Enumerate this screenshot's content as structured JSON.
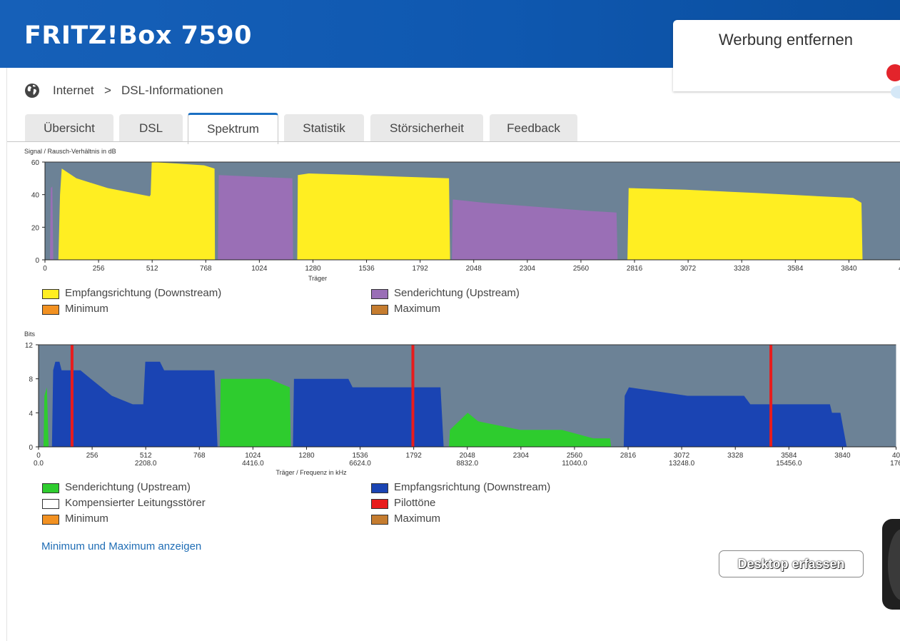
{
  "header": {
    "title": "FRITZ!Box 7590"
  },
  "ad": {
    "label": "Werbung entfernen"
  },
  "breadcrumb": {
    "icon": "globe-icon",
    "items": [
      "Internet",
      "DSL-Informationen"
    ],
    "separator": ">"
  },
  "tabs": [
    {
      "label": "Übersicht",
      "active": false
    },
    {
      "label": "DSL",
      "active": false
    },
    {
      "label": "Spektrum",
      "active": true
    },
    {
      "label": "Statistik",
      "active": false
    },
    {
      "label": "Störsicherheit",
      "active": false
    },
    {
      "label": "Feedback",
      "active": false
    }
  ],
  "chart_data": [
    {
      "type": "area",
      "ylabel": "Signal / Rausch-Verhältnis in dB",
      "xlabel": "Träger",
      "ylim": [
        0,
        60
      ],
      "yticks": [
        "0",
        "20",
        "40",
        "60"
      ],
      "xlim": [
        0,
        4096
      ],
      "xticks": [
        "0",
        "256",
        "512",
        "768",
        "1024",
        "1280",
        "1536",
        "1792",
        "2048",
        "2304",
        "2560",
        "2816",
        "3072",
        "3328",
        "3584",
        "3840",
        "40"
      ],
      "background": "#6c8296",
      "series": [
        {
          "name": "Empfangsrichtung (Downstream)",
          "color": "#ffee22",
          "segments": [
            [
              [
                64,
                0
              ],
              [
                72,
                40
              ],
              [
                80,
                56
              ],
              [
                150,
                50
              ],
              [
                300,
                44
              ],
              [
                500,
                39
              ],
              [
                505,
                40
              ],
              [
                510,
                60
              ],
              [
                640,
                59
              ],
              [
                760,
                58
              ],
              [
                810,
                56
              ],
              [
                812,
                0
              ]
            ],
            [
              [
                1205,
                0
              ],
              [
                1208,
                52
              ],
              [
                1260,
                53
              ],
              [
                1500,
                52
              ],
              [
                1700,
                51
              ],
              [
                1930,
                50
              ],
              [
                1935,
                0
              ]
            ],
            [
              [
                2782,
                0
              ],
              [
                2788,
                44
              ],
              [
                3060,
                43
              ],
              [
                3400,
                41
              ],
              [
                3700,
                39
              ],
              [
                3860,
                38
              ],
              [
                3900,
                35
              ],
              [
                3905,
                0
              ]
            ]
          ]
        },
        {
          "name": "Senderichtung (Upstream)",
          "color": "#9a6fb6",
          "segments": [
            [
              [
                24,
                0
              ],
              [
                28,
                44
              ],
              [
                35,
                45
              ],
              [
                40,
                0
              ]
            ],
            [
              [
                826,
                0
              ],
              [
                830,
                52
              ],
              [
                1000,
                51
              ],
              [
                1182,
                50
              ],
              [
                1185,
                0
              ]
            ],
            [
              [
                1944,
                0
              ],
              [
                1948,
                37
              ],
              [
                2100,
                35
              ],
              [
                2400,
                32
              ],
              [
                2600,
                30
              ],
              [
                2730,
                29
              ],
              [
                2735,
                0
              ]
            ]
          ]
        },
        {
          "name": "Minimum",
          "color": "#f29121",
          "segments": []
        },
        {
          "name": "Maximum",
          "color": "#c57c2f",
          "segments": []
        }
      ]
    },
    {
      "type": "area",
      "ylabel": "Bits",
      "xlabel": "Träger / Frequenz in kHz",
      "ylim": [
        0,
        12
      ],
      "yticks": [
        "0",
        "4",
        "8",
        "12"
      ],
      "xlim": [
        0,
        4096
      ],
      "xticks": [
        "0",
        "256",
        "512",
        "768",
        "1024",
        "1280",
        "1536",
        "1792",
        "2048",
        "2304",
        "2560",
        "2816",
        "3072",
        "3328",
        "3584",
        "3840",
        "40"
      ],
      "xticks_khz": [
        "0.0",
        "2208.0",
        "4416.0",
        "6624.0",
        "8832.0",
        "11040.0",
        "13248.0",
        "15456.0",
        "176"
      ],
      "background": "#6c8296",
      "series": [
        {
          "name": "Senderichtung (Upstream)",
          "color": "#2ecc2e",
          "segments": [
            [
              [
                24,
                0
              ],
              [
                28,
                6
              ],
              [
                40,
                7
              ],
              [
                48,
                0
              ]
            ],
            [
              [
                866,
                0
              ],
              [
                870,
                8
              ],
              [
                1100,
                8
              ],
              [
                1200,
                7
              ],
              [
                1205,
                0
              ]
            ],
            [
              [
                1960,
                0
              ],
              [
                1965,
                2
              ],
              [
                2050,
                4
              ],
              [
                2100,
                3
              ],
              [
                2300,
                2
              ],
              [
                2500,
                2
              ],
              [
                2650,
                1
              ],
              [
                2730,
                1
              ],
              [
                2735,
                0
              ]
            ]
          ]
        },
        {
          "name": "Empfangsrichtung (Downstream)",
          "color": "#1a44b3",
          "segments": [
            [
              [
                64,
                0
              ],
              [
                70,
                9
              ],
              [
                80,
                10
              ],
              [
                100,
                10
              ],
              [
                110,
                9
              ],
              [
                200,
                9
              ],
              [
                250,
                8
              ],
              [
                300,
                7
              ],
              [
                350,
                6
              ],
              [
                450,
                5
              ],
              [
                500,
                5
              ],
              [
                510,
                10
              ],
              [
                580,
                10
              ],
              [
                600,
                9
              ],
              [
                840,
                9
              ],
              [
                855,
                0
              ]
            ],
            [
              [
                1215,
                0
              ],
              [
                1220,
                8
              ],
              [
                1480,
                8
              ],
              [
                1500,
                7
              ],
              [
                1920,
                7
              ],
              [
                1935,
                0
              ]
            ],
            [
              [
                2795,
                0
              ],
              [
                2800,
                6
              ],
              [
                2820,
                7
              ],
              [
                3100,
                6
              ],
              [
                3370,
                6
              ],
              [
                3400,
                5
              ],
              [
                3780,
                5
              ],
              [
                3790,
                4
              ],
              [
                3830,
                4
              ],
              [
                3860,
                0
              ]
            ]
          ]
        },
        {
          "name": "Kompensierter Leitungsstörer",
          "color": "#ffffff",
          "segments": []
        },
        {
          "name": "Pilottöne",
          "color": "#e81c1c",
          "pilots": [
            160,
            1788,
            3498
          ]
        },
        {
          "name": "Minimum",
          "color": "#f29121",
          "segments": []
        },
        {
          "name": "Maximum",
          "color": "#c57c2f",
          "segments": []
        }
      ]
    }
  ],
  "legend1": [
    {
      "label": "Empfangsrichtung (Downstream)",
      "color": "#ffee22"
    },
    {
      "label": "Senderichtung (Upstream)",
      "color": "#9a6fb6"
    },
    {
      "label": "Minimum",
      "color": "#f29121"
    },
    {
      "label": "Maximum",
      "color": "#c57c2f"
    }
  ],
  "legend2": [
    {
      "label": "Senderichtung (Upstream)",
      "color": "#2ecc2e"
    },
    {
      "label": "Empfangsrichtung (Downstream)",
      "color": "#1a44b3"
    },
    {
      "label": "Kompensierter Leitungsstörer",
      "color": "#ffffff"
    },
    {
      "label": "Pilottöne",
      "color": "#e81c1c"
    },
    {
      "label": "Minimum",
      "color": "#f29121"
    },
    {
      "label": "Maximum",
      "color": "#c57c2f"
    }
  ],
  "links": {
    "minmax": "Minimum und Maximum anzeigen"
  },
  "overlay": {
    "capture_button": "Desktop erfassen"
  }
}
